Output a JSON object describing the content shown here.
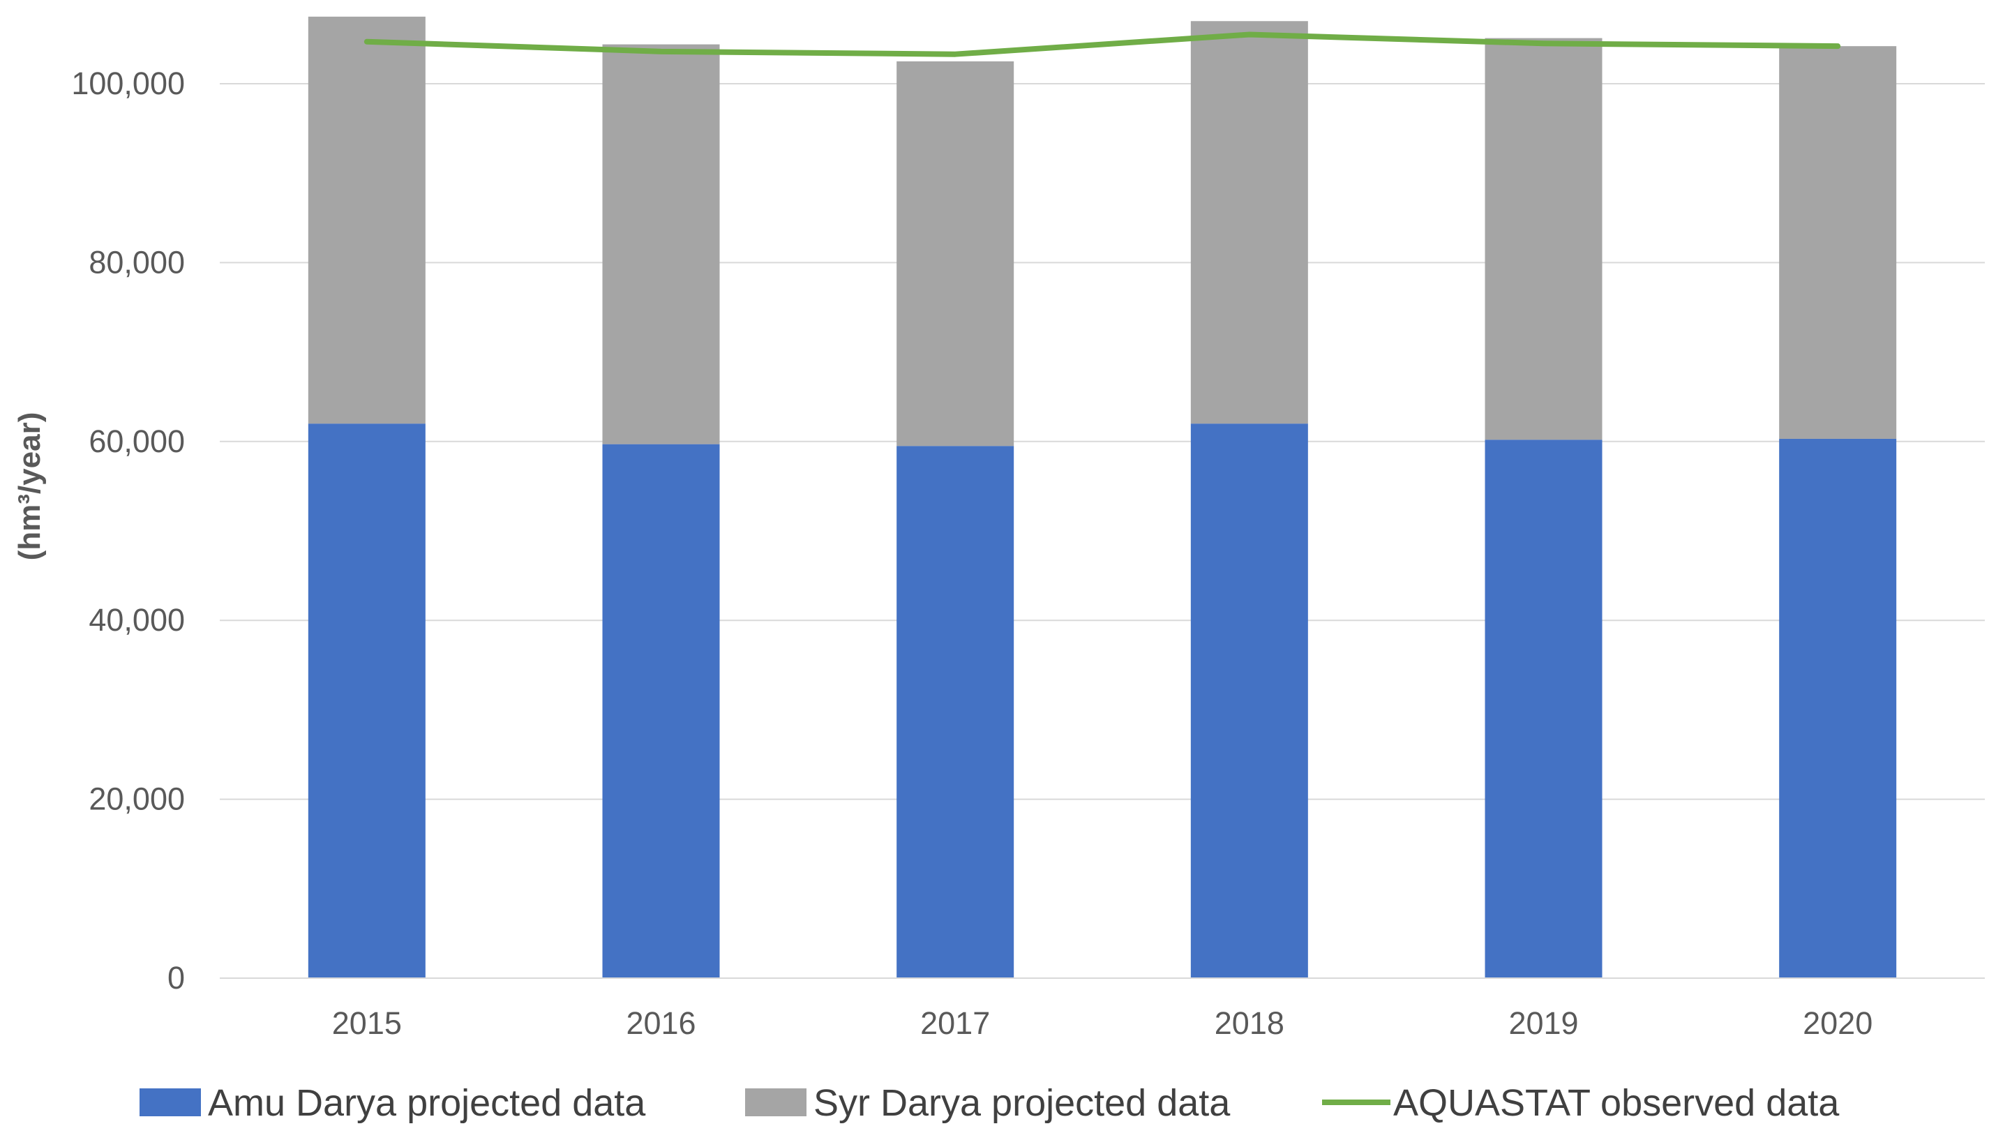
{
  "chart_data": {
    "type": "bar",
    "stacked": true,
    "categories": [
      "2015",
      "2016",
      "2017",
      "2018",
      "2019",
      "2020"
    ],
    "series": [
      {
        "name": "Amu Darya projected data",
        "kind": "bar",
        "color": "#4472C4",
        "values": [
          62000,
          59700,
          59500,
          62000,
          60200,
          60300
        ]
      },
      {
        "name": "Syr Darya projected data",
        "kind": "bar",
        "color": "#A5A5A5",
        "values": [
          45500,
          44700,
          43000,
          45000,
          44900,
          43900
        ]
      },
      {
        "name": "AQUASTAT observed data",
        "kind": "line",
        "color": "#70AD47",
        "values": [
          104700,
          103600,
          103300,
          105500,
          104500,
          104200
        ]
      }
    ],
    "title": "",
    "xlabel": "",
    "ylabel": "(hm³/year)",
    "ylim": [
      0,
      108000
    ],
    "yticks": [
      0,
      20000,
      40000,
      60000,
      80000,
      100000
    ],
    "ytick_labels": [
      "0",
      "20,000",
      "40,000",
      "60,000",
      "80,000",
      "100,000"
    ],
    "grid": true,
    "legend_position": "bottom"
  }
}
